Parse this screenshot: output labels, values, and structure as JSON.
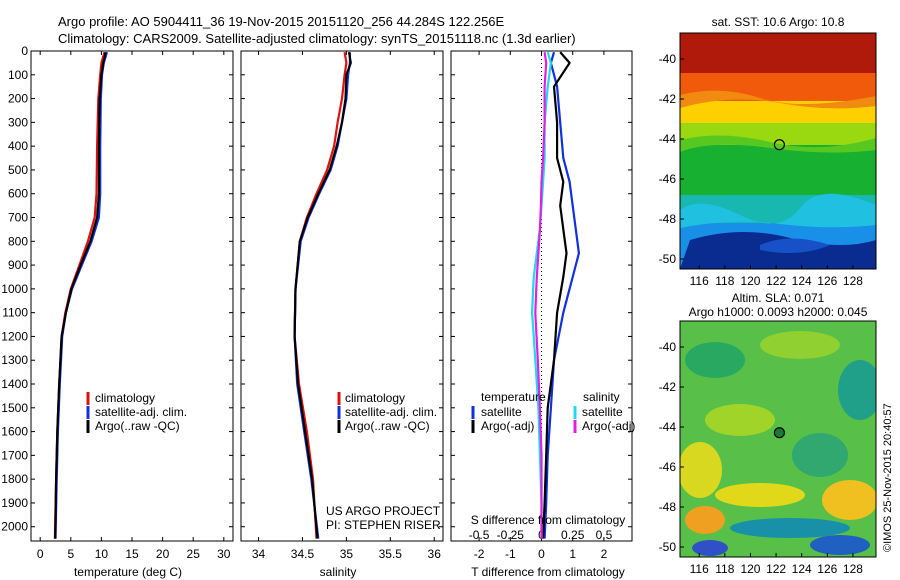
{
  "header": {
    "line1": "Argo profile: AO 5904411_36 19-Nov-2015 20151120_256 44.284S 122.256E",
    "line2": "Climatology: CARS2009. Satellite-adjusted climatology: synTS_20151118.nc (1.3d earlier)"
  },
  "credit": "US ARGO PROJECT",
  "pi": "PI: STEPHEN RISER",
  "stamp": "©IMOS 25-Nov-2015 20:40:57",
  "colors": {
    "climatology": "#e01010",
    "satellite": "#1030e0",
    "argo": "#000000",
    "sal_satellite": "#20d8f0",
    "sal_argo": "#e020e0"
  },
  "chart_data": [
    {
      "id": "temperature",
      "type": "line",
      "xlabel": "temperature (deg C)",
      "xlim": [
        -1.5,
        31.5
      ],
      "xticks": [
        "0",
        "5",
        "10",
        "15",
        "20",
        "25",
        "30"
      ],
      "xtick_values": [
        0,
        5,
        10,
        15,
        20,
        25,
        30
      ],
      "ylim": [
        0,
        2060
      ],
      "yticks": [
        "0",
        "100",
        "200",
        "300",
        "400",
        "500",
        "600",
        "700",
        "800",
        "900",
        "1000",
        "1100",
        "1200",
        "1300",
        "1400",
        "1500",
        "1600",
        "1700",
        "1800",
        "1900",
        "2000"
      ],
      "ytick_values": [
        0,
        100,
        200,
        300,
        400,
        500,
        600,
        700,
        800,
        900,
        1000,
        1100,
        1200,
        1300,
        1400,
        1500,
        1600,
        1700,
        1800,
        1900,
        2000
      ],
      "legend": [
        "climatology",
        "satellite-adj. clim.",
        "Argo(..raw -QC)"
      ],
      "series": [
        {
          "name": "climatology",
          "color": "#e01010",
          "x": [
            10.5,
            10.0,
            9.8,
            9.5,
            9.3,
            9.2,
            8.9,
            7.8,
            6.4,
            5.0,
            4.1,
            3.5,
            3.1,
            2.8,
            2.6,
            2.4
          ],
          "y": [
            5,
            50,
            100,
            200,
            400,
            600,
            700,
            800,
            900,
            1000,
            1100,
            1200,
            1400,
            1600,
            1800,
            2050
          ]
        },
        {
          "name": "satellite-adj. clim.",
          "color": "#1030e0",
          "x": [
            10.9,
            10.4,
            10.1,
            9.9,
            9.8,
            9.8,
            9.6,
            8.4,
            6.8,
            5.2,
            4.2,
            3.6,
            3.2,
            2.9,
            2.7,
            2.5
          ],
          "y": [
            5,
            50,
            100,
            200,
            400,
            600,
            700,
            800,
            900,
            1000,
            1100,
            1200,
            1400,
            1600,
            1800,
            2050
          ]
        },
        {
          "name": "Argo(..raw -QC)",
          "color": "#000000",
          "x": [
            10.7,
            10.3,
            10.0,
            9.7,
            9.6,
            9.6,
            9.3,
            8.2,
            6.6,
            5.1,
            4.2,
            3.5,
            3.1,
            2.8,
            2.6,
            2.45
          ],
          "y": [
            5,
            50,
            100,
            200,
            400,
            600,
            700,
            800,
            900,
            1000,
            1100,
            1200,
            1400,
            1600,
            1800,
            2050
          ]
        }
      ]
    },
    {
      "id": "salinity",
      "type": "line",
      "xlabel": "salinity",
      "xlim": [
        33.8,
        36.1
      ],
      "xticks": [
        "34",
        "34.5",
        "35",
        "35.5",
        "36"
      ],
      "xtick_values": [
        34,
        34.5,
        35,
        35.5,
        36
      ],
      "ylim": [
        0,
        2060
      ],
      "legend": [
        "climatology",
        "satellite-adj. clim.",
        "Argo(..raw -QC)"
      ],
      "series": [
        {
          "name": "climatology",
          "color": "#e01010",
          "x": [
            34.98,
            35.0,
            34.98,
            34.95,
            34.9,
            34.86,
            34.78,
            34.66,
            34.55,
            34.47,
            34.42,
            34.41,
            34.46,
            34.55,
            34.62,
            34.66
          ],
          "y": [
            5,
            50,
            100,
            200,
            300,
            400,
            500,
            600,
            700,
            800,
            1000,
            1200,
            1400,
            1600,
            1800,
            2050
          ]
        },
        {
          "name": "satellite-adj. clim.",
          "color": "#1030e0",
          "x": [
            35.04,
            35.04,
            35.02,
            35.0,
            34.95,
            34.9,
            34.82,
            34.69,
            34.57,
            34.48,
            34.42,
            34.41,
            34.44,
            34.52,
            34.6,
            34.68
          ],
          "y": [
            5,
            50,
            100,
            200,
            300,
            400,
            500,
            600,
            700,
            800,
            1000,
            1200,
            1400,
            1600,
            1800,
            2050
          ]
        },
        {
          "name": "Argo(..raw -QC)",
          "color": "#000000",
          "x": [
            35.03,
            35.05,
            35.0,
            34.99,
            34.95,
            34.89,
            34.81,
            34.68,
            34.56,
            34.47,
            34.42,
            34.41,
            34.45,
            34.53,
            34.61,
            34.67
          ],
          "y": [
            5,
            50,
            100,
            200,
            300,
            400,
            500,
            600,
            700,
            800,
            1000,
            1200,
            1400,
            1600,
            1800,
            2050
          ]
        }
      ]
    },
    {
      "id": "difference",
      "type": "line",
      "xlabel": "T difference from climatology",
      "xlabel2": "S difference from climatology",
      "xlim": [
        -2.9,
        2.9
      ],
      "xticks": [
        "-2",
        "-1",
        "0",
        "1",
        "2"
      ],
      "xtick_values": [
        -2,
        -1,
        0,
        1,
        2
      ],
      "sticks": [
        "-0.5",
        "-0.25",
        "0",
        "0.25",
        "0.5"
      ],
      "stick_values": [
        -2,
        -1,
        0,
        1,
        2
      ],
      "ylim": [
        0,
        2060
      ],
      "legend_headers": [
        "temperature",
        "salinity"
      ],
      "legend": [
        "satellite",
        "Argo(-adj)",
        "satellite",
        "Argo(-adj)"
      ],
      "series": [
        {
          "name": "T satellite",
          "color": "#1030e0",
          "x": [
            0.4,
            0.3,
            0.5,
            0.6,
            0.7,
            0.9,
            1.0,
            1.1,
            1.2,
            1.0,
            0.7,
            0.4,
            0.3,
            0.2,
            0.15,
            0.1
          ],
          "y": [
            5,
            50,
            150,
            300,
            450,
            550,
            650,
            750,
            850,
            950,
            1100,
            1300,
            1500,
            1700,
            1900,
            2050
          ]
        },
        {
          "name": "T Argo(-adj)",
          "color": "#000000",
          "x": [
            0.6,
            0.9,
            0.4,
            0.5,
            0.5,
            0.7,
            0.6,
            0.7,
            0.8,
            0.7,
            0.5,
            0.4,
            0.2,
            0.15,
            0.1,
            0.05
          ],
          "y": [
            5,
            50,
            150,
            300,
            450,
            550,
            650,
            750,
            850,
            950,
            1100,
            1300,
            1500,
            1700,
            1900,
            2050
          ]
        },
        {
          "name": "S satellite",
          "color": "#20d8f0",
          "x": [
            0.2,
            0.3,
            0.2,
            0.1,
            0.1,
            0.05,
            0.0,
            -0.05,
            -0.15,
            -0.25,
            -0.3,
            -0.2,
            -0.1,
            -0.05,
            0.0,
            0.0
          ],
          "y": [
            5,
            50,
            150,
            300,
            450,
            550,
            650,
            750,
            850,
            950,
            1100,
            1300,
            1500,
            1700,
            1900,
            2050
          ]
        },
        {
          "name": "S Argo(-adj)",
          "color": "#e020e0",
          "x": [
            0.1,
            0.15,
            0.1,
            0.1,
            0.05,
            0.0,
            -0.02,
            -0.05,
            -0.1,
            -0.15,
            -0.2,
            -0.12,
            -0.05,
            0.0,
            0.0,
            0.0
          ],
          "y": [
            5,
            50,
            150,
            300,
            450,
            550,
            650,
            750,
            850,
            950,
            1100,
            1300,
            1500,
            1700,
            1900,
            2050
          ]
        }
      ]
    },
    {
      "id": "sst_map",
      "type": "heatmap",
      "title": "sat. SST: 10.6  Argo: 10.8",
      "xticks": [
        "116",
        "118",
        "120",
        "122",
        "124",
        "126",
        "128"
      ],
      "xtick_values": [
        116,
        118,
        120,
        122,
        124,
        126,
        128
      ],
      "yticks": [
        "-40",
        "-42",
        "-44",
        "-46",
        "-48",
        "-50"
      ],
      "ytick_values": [
        -40,
        -42,
        -44,
        -46,
        -48,
        -50
      ],
      "xlim": [
        114.5,
        129.8
      ],
      "ylim": [
        -50.5,
        -38.7
      ],
      "marker": [
        122.256,
        -44.284
      ]
    },
    {
      "id": "sla_map",
      "type": "heatmap",
      "title": "Altim. SLA: 0.071",
      "subtitle": "Argo h1000: 0.0093 h2000: 0.045",
      "xticks": [
        "116",
        "118",
        "120",
        "122",
        "124",
        "126",
        "128"
      ],
      "xtick_values": [
        116,
        118,
        120,
        122,
        124,
        126,
        128
      ],
      "yticks": [
        "-40",
        "-42",
        "-44",
        "-46",
        "-48",
        "-50"
      ],
      "ytick_values": [
        -40,
        -42,
        -44,
        -46,
        -48,
        -50
      ],
      "xlim": [
        114.5,
        129.8
      ],
      "ylim": [
        -50.5,
        -38.7
      ],
      "marker": [
        122.256,
        -44.284
      ]
    }
  ]
}
